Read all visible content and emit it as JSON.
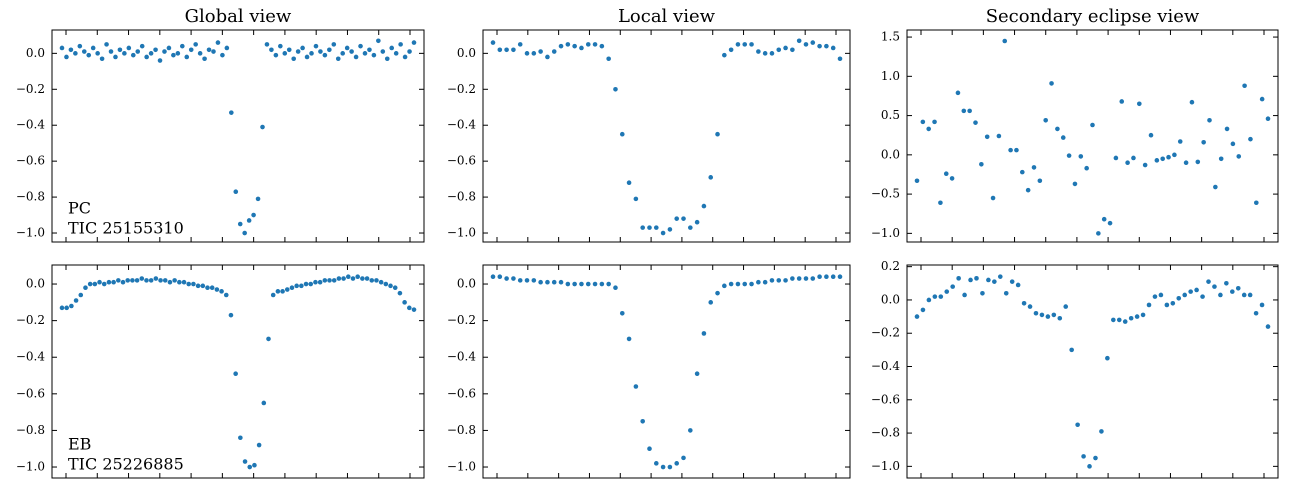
{
  "chart_data": [
    {
      "type": "scatter",
      "title": "Global view",
      "annotations": [
        "PC",
        "TIC 25155310"
      ],
      "color": "#1f77b4",
      "ylim": [
        -1.05,
        0.13
      ],
      "yticks": [
        {
          "value": 0,
          "label": "0.0"
        },
        {
          "value": -0.2,
          "label": "−0.2"
        },
        {
          "value": -0.4,
          "label": "−0.4"
        },
        {
          "value": -0.6,
          "label": "−0.6"
        },
        {
          "value": -0.8,
          "label": "−0.8"
        },
        {
          "value": -1.0,
          "label": "−1.0"
        }
      ],
      "values": [
        0.03,
        -0.02,
        0.02,
        0.0,
        0.04,
        0.01,
        -0.01,
        0.03,
        0.0,
        -0.03,
        0.05,
        0.01,
        -0.02,
        0.02,
        0.0,
        0.03,
        -0.01,
        0.01,
        0.04,
        -0.02,
        0.0,
        0.02,
        -0.04,
        0.01,
        0.03,
        -0.01,
        0.0,
        0.04,
        -0.02,
        0.02,
        0.05,
        0.0,
        -0.03,
        0.02,
        0.01,
        0.06,
        -0.01,
        0.03,
        -0.33,
        -0.77,
        -0.95,
        -1.0,
        -0.93,
        -0.9,
        -0.81,
        -0.41,
        0.05,
        0.02,
        -0.01,
        0.04,
        0.0,
        0.02,
        -0.03,
        0.01,
        0.03,
        -0.02,
        0.0,
        0.04,
        0.01,
        -0.01,
        0.02,
        0.05,
        -0.03,
        0.0,
        0.03,
        0.01,
        -0.02,
        0.04,
        0.0,
        0.02,
        -0.01,
        0.07,
        0.01,
        -0.03,
        0.03,
        0.0,
        0.05,
        -0.02,
        0.01,
        0.06
      ]
    },
    {
      "type": "scatter",
      "title": "Local view",
      "color": "#1f77b4",
      "ylim": [
        -1.05,
        0.13
      ],
      "yticks": [
        {
          "value": 0,
          "label": "0.0"
        },
        {
          "value": -0.2,
          "label": "−0.2"
        },
        {
          "value": -0.4,
          "label": "−0.4"
        },
        {
          "value": -0.6,
          "label": "−0.6"
        },
        {
          "value": -0.8,
          "label": "−0.8"
        },
        {
          "value": -1.0,
          "label": "−1.0"
        }
      ],
      "values": [
        0.06,
        0.02,
        0.02,
        0.02,
        0.05,
        0.0,
        0.0,
        0.01,
        -0.02,
        0.01,
        0.04,
        0.05,
        0.04,
        0.03,
        0.05,
        0.05,
        0.04,
        -0.03,
        -0.2,
        -0.45,
        -0.72,
        -0.81,
        -0.97,
        -0.97,
        -0.97,
        -1.0,
        -0.98,
        -0.92,
        -0.92,
        -0.97,
        -0.94,
        -0.85,
        -0.69,
        -0.45,
        -0.01,
        0.02,
        0.05,
        0.05,
        0.05,
        0.01,
        0.0,
        0.0,
        0.02,
        0.03,
        0.02,
        0.07,
        0.05,
        0.06,
        0.04,
        0.04,
        0.03,
        -0.03
      ]
    },
    {
      "type": "scatter",
      "title": "Secondary eclipse view",
      "color": "#1f77b4",
      "ylim": [
        -1.11,
        1.59
      ],
      "yticks": [
        {
          "value": 1.5,
          "label": "1.5"
        },
        {
          "value": 1.0,
          "label": "1.0"
        },
        {
          "value": 0.5,
          "label": "0.5"
        },
        {
          "value": 0,
          "label": "0.0"
        },
        {
          "value": -0.5,
          "label": "−0.5"
        },
        {
          "value": -1.0,
          "label": "−1.0"
        }
      ],
      "values": [
        -0.33,
        0.42,
        0.33,
        0.42,
        -0.61,
        -0.24,
        -0.3,
        0.79,
        0.56,
        0.56,
        0.41,
        -0.12,
        0.23,
        -0.55,
        0.24,
        1.45,
        0.06,
        0.06,
        -0.22,
        -0.45,
        -0.16,
        -0.33,
        0.44,
        0.91,
        0.33,
        0.22,
        -0.01,
        -0.37,
        -0.02,
        -0.17,
        0.38,
        -1.0,
        -0.82,
        -0.87,
        -0.04,
        0.68,
        -0.1,
        -0.04,
        0.65,
        -0.13,
        0.25,
        -0.07,
        -0.05,
        -0.03,
        0.0,
        0.17,
        -0.1,
        0.67,
        -0.09,
        0.16,
        0.44,
        -0.41,
        -0.05,
        0.33,
        0.14,
        -0.02,
        0.88,
        0.2,
        -0.61,
        0.71,
        0.46
      ]
    },
    {
      "type": "scatter",
      "annotations": [
        "EB",
        "TIC 25226885"
      ],
      "color": "#1f77b4",
      "ylim": [
        -1.06,
        0.104
      ],
      "yticks": [
        {
          "value": 0,
          "label": "0.0"
        },
        {
          "value": -0.2,
          "label": "−0.2"
        },
        {
          "value": -0.4,
          "label": "−0.4"
        },
        {
          "value": -0.6,
          "label": "−0.6"
        },
        {
          "value": -0.8,
          "label": "−0.8"
        },
        {
          "value": -1.0,
          "label": "−1.0"
        }
      ],
      "values": [
        -0.13,
        -0.13,
        -0.12,
        -0.09,
        -0.06,
        -0.02,
        0.0,
        0.0,
        0.01,
        0.0,
        0.01,
        0.01,
        0.02,
        0.01,
        0.02,
        0.02,
        0.02,
        0.03,
        0.02,
        0.02,
        0.03,
        0.02,
        0.02,
        0.01,
        0.02,
        0.01,
        0.01,
        0.0,
        0.0,
        -0.01,
        -0.01,
        -0.02,
        -0.02,
        -0.03,
        -0.04,
        -0.06,
        -0.17,
        -0.49,
        -0.84,
        -0.97,
        -1.0,
        -0.99,
        -0.88,
        -0.65,
        -0.3,
        -0.06,
        -0.04,
        -0.04,
        -0.03,
        -0.02,
        -0.01,
        -0.01,
        0.0,
        0.0,
        0.01,
        0.01,
        0.02,
        0.02,
        0.02,
        0.03,
        0.03,
        0.04,
        0.03,
        0.04,
        0.03,
        0.03,
        0.02,
        0.02,
        0.01,
        0.0,
        -0.01,
        -0.02,
        -0.05,
        -0.1,
        -0.13,
        -0.14
      ]
    },
    {
      "type": "scatter",
      "color": "#1f77b4",
      "ylim": [
        -1.06,
        0.104
      ],
      "yticks": [
        {
          "value": 0,
          "label": "0.0"
        },
        {
          "value": -0.2,
          "label": "−0.2"
        },
        {
          "value": -0.4,
          "label": "−0.4"
        },
        {
          "value": -0.6,
          "label": "−0.6"
        },
        {
          "value": -0.8,
          "label": "−0.8"
        },
        {
          "value": -1.0,
          "label": "−1.0"
        }
      ],
      "values": [
        0.04,
        0.04,
        0.03,
        0.03,
        0.02,
        0.02,
        0.02,
        0.01,
        0.01,
        0.01,
        0.01,
        0.0,
        0.0,
        0.0,
        0.0,
        0.0,
        0.0,
        0.0,
        -0.02,
        -0.16,
        -0.3,
        -0.56,
        -0.75,
        -0.9,
        -0.98,
        -1.0,
        -1.0,
        -0.98,
        -0.95,
        -0.8,
        -0.49,
        -0.27,
        -0.1,
        -0.05,
        -0.01,
        0.0,
        0.0,
        0.0,
        0.0,
        0.01,
        0.01,
        0.02,
        0.02,
        0.02,
        0.03,
        0.03,
        0.03,
        0.03,
        0.04,
        0.04,
        0.04,
        0.04
      ]
    },
    {
      "type": "scatter",
      "color": "#1f77b4",
      "ylim": [
        -1.07,
        0.21
      ],
      "yticks": [
        {
          "value": 0.2,
          "label": "0.2"
        },
        {
          "value": 0,
          "label": "0.0"
        },
        {
          "value": -0.2,
          "label": "−0.2"
        },
        {
          "value": -0.4,
          "label": "−0.4"
        },
        {
          "value": -0.6,
          "label": "−0.6"
        },
        {
          "value": -0.8,
          "label": "−0.8"
        },
        {
          "value": -1.0,
          "label": "−1.0"
        }
      ],
      "values": [
        -0.1,
        -0.06,
        0.0,
        0.02,
        0.02,
        0.05,
        0.08,
        0.13,
        0.03,
        0.12,
        0.13,
        0.04,
        0.12,
        0.11,
        0.14,
        0.04,
        0.11,
        0.09,
        -0.02,
        -0.04,
        -0.08,
        -0.09,
        -0.1,
        -0.09,
        -0.11,
        -0.04,
        -0.3,
        -0.75,
        -0.94,
        -1.0,
        -0.95,
        -0.79,
        -0.35,
        -0.12,
        -0.12,
        -0.13,
        -0.11,
        -0.1,
        -0.09,
        -0.03,
        0.02,
        0.03,
        -0.03,
        -0.02,
        0.01,
        0.03,
        0.05,
        0.06,
        0.02,
        0.11,
        0.08,
        0.03,
        0.1,
        0.05,
        0.07,
        0.03,
        0.03,
        -0.08,
        -0.03,
        -0.16
      ]
    }
  ]
}
